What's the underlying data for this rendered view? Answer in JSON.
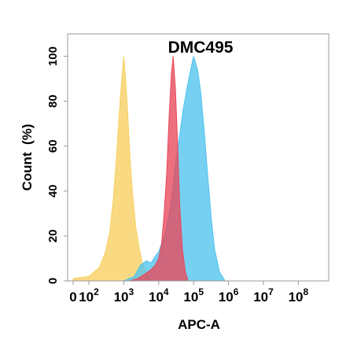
{
  "chart_data": {
    "type": "area",
    "title": "DMC495",
    "xlabel": "APC-A",
    "ylabel": "Count  (%)",
    "x_scale": "biexponential",
    "xlim": [
      -50,
      100000000
    ],
    "ylim": [
      0,
      110
    ],
    "x_ticks": [
      {
        "value": 0,
        "label": "0",
        "exp": ""
      },
      {
        "value": 100,
        "label": "10",
        "exp": "2"
      },
      {
        "value": 1000,
        "label": "10",
        "exp": "3"
      },
      {
        "value": 10000,
        "label": "10",
        "exp": "4"
      },
      {
        "value": 100000,
        "label": "10",
        "exp": "5"
      },
      {
        "value": 1000000,
        "label": "10",
        "exp": "6"
      },
      {
        "value": 10000000,
        "label": "10",
        "exp": "7"
      },
      {
        "value": 100000000,
        "label": "10",
        "exp": "8"
      }
    ],
    "y_ticks": [
      0,
      20,
      40,
      60,
      80,
      100
    ],
    "grid": false,
    "legend": "none",
    "series": [
      {
        "color": "#f7d060",
        "x": [
          0,
          100,
          200,
          300,
          400,
          500,
          600,
          700,
          800,
          900,
          1000,
          1150,
          1300,
          1500,
          1800,
          2200,
          2800,
          3500,
          4500,
          6000,
          8000
        ],
        "y": [
          1,
          2,
          6,
          13,
          22,
          36,
          52,
          68,
          82,
          92,
          100,
          88,
          74,
          55,
          38,
          24,
          14,
          7,
          3,
          1,
          0
        ]
      },
      {
        "color": "#4fc3ee",
        "x": [
          1000,
          2000,
          3000,
          4500,
          6000,
          8000,
          10000,
          13000,
          16000,
          20000,
          25000,
          30000,
          40000,
          50000,
          65000,
          80000,
          100000,
          130000,
          160000,
          200000,
          250000,
          320000,
          400000,
          550000,
          800000
        ],
        "y": [
          0,
          2,
          7,
          9,
          8,
          11,
          13,
          18,
          22,
          30,
          40,
          52,
          65,
          76,
          86,
          93,
          100,
          94,
          84,
          67,
          48,
          28,
          14,
          4,
          0
        ]
      },
      {
        "color": "#e8485a",
        "x": [
          1500,
          2500,
          4000,
          6000,
          8000,
          10000,
          12000,
          14000,
          17000,
          20000,
          23000,
          26000,
          30000,
          35000,
          40000,
          48000,
          58000,
          70000
        ],
        "y": [
          0,
          1,
          3,
          5,
          7,
          10,
          16,
          28,
          48,
          74,
          92,
          100,
          86,
          60,
          34,
          14,
          4,
          0
        ]
      }
    ]
  }
}
